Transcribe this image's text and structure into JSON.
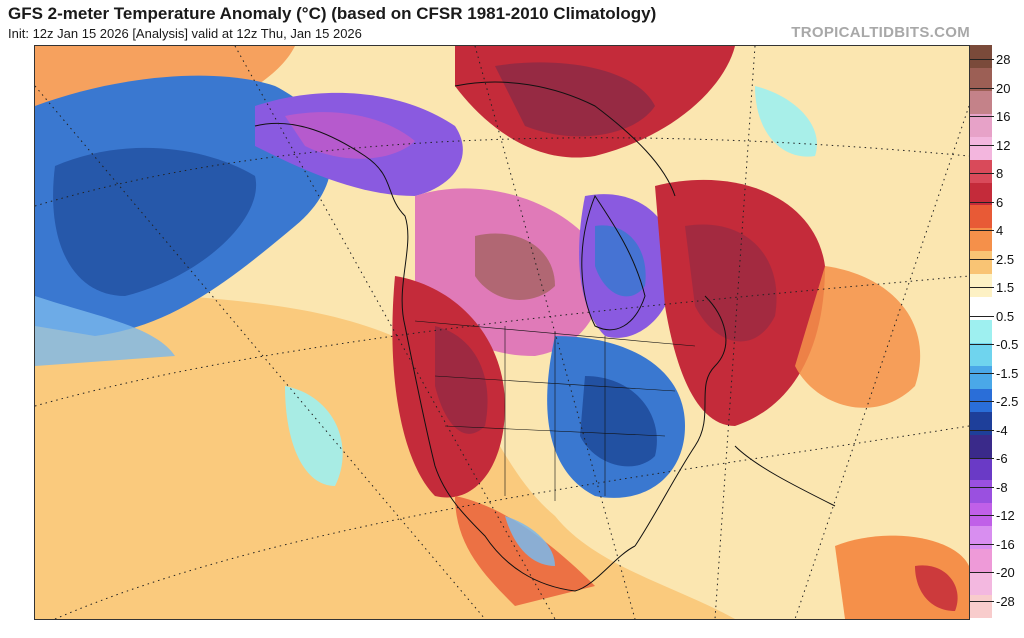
{
  "header": {
    "title": "GFS 2-meter Temperature Anomaly (°C) (based on CFSR 1981-2010 Climatology)",
    "subtitle": "Init: 12z Jan 15 2026   [Analysis]   valid at 12z Thu, Jan 15 2026",
    "watermark": "TROPICALTIDBITS.COM"
  },
  "colorbar": {
    "labels": [
      "28",
      "20",
      "16",
      "12",
      "8",
      "6",
      "4",
      "2.5",
      "1.5",
      "0.5",
      "-0.5",
      "-1.5",
      "-2.5",
      "-4",
      "-6",
      "-8",
      "-12",
      "-16",
      "-20",
      "-28"
    ],
    "colors": [
      "#7a4a3a",
      "#9c5f55",
      "#c48289",
      "#e7a2c8",
      "#f3b6de",
      "#d94a5a",
      "#c42b3a",
      "#e85a36",
      "#f5904a",
      "#f9c474",
      "#fdf1c4",
      "#ffffff",
      "#9ef0f0",
      "#6fd4ee",
      "#4aa8e8",
      "#2a6ed8",
      "#1e3f9a",
      "#3a2a8a",
      "#6a3ac6",
      "#9a50e0",
      "#c060e8",
      "#d88ef0",
      "#ee9ad8",
      "#f3b8e0",
      "#f8cccc"
    ]
  },
  "map": {
    "palette": {
      "warm_ocean": "#fbe6b0",
      "light_warm": "#f9c474",
      "orange": "#f5904a",
      "red": "#c42b3a",
      "dark_red": "#8e2a45",
      "pink": "#e07ab8",
      "magenta": "#c05ac8",
      "purple": "#8a5ae0",
      "blue": "#3a78d0",
      "dark_blue": "#1e4a9a",
      "light_blue": "#7ab8ec",
      "cyan": "#9ef0f0",
      "land_outline": "#111111",
      "graticule": "#222222"
    }
  }
}
